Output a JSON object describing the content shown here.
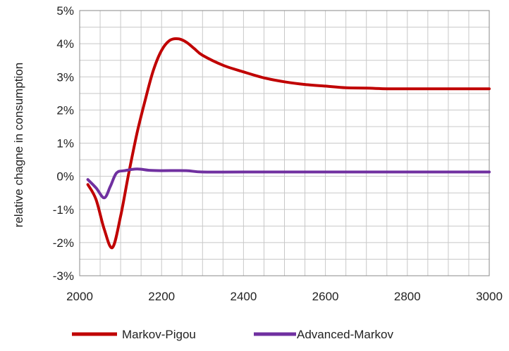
{
  "chart_data": {
    "type": "line",
    "xlabel": "",
    "ylabel": "relative chagne in consumption",
    "xlim": [
      2000,
      3000
    ],
    "ylim": [
      -3,
      5
    ],
    "x_ticks": [
      "2000",
      "2200",
      "2400",
      "2600",
      "2800",
      "3000"
    ],
    "y_ticks": [
      "-3%",
      "-2%",
      "-1%",
      "0%",
      "1%",
      "2%",
      "3%",
      "4%",
      "5%"
    ],
    "grid": true,
    "legend_position": "bottom",
    "series": [
      {
        "name": "Markov-Pigou",
        "color": "#c00000",
        "points": [
          [
            2020,
            -0.25
          ],
          [
            2040,
            -0.7
          ],
          [
            2060,
            -1.6
          ],
          [
            2080,
            -2.15
          ],
          [
            2100,
            -1.2
          ],
          [
            2120,
            0.1
          ],
          [
            2140,
            1.3
          ],
          [
            2160,
            2.3
          ],
          [
            2180,
            3.2
          ],
          [
            2200,
            3.8
          ],
          [
            2220,
            4.1
          ],
          [
            2240,
            4.15
          ],
          [
            2260,
            4.05
          ],
          [
            2280,
            3.85
          ],
          [
            2300,
            3.65
          ],
          [
            2350,
            3.35
          ],
          [
            2400,
            3.15
          ],
          [
            2450,
            2.97
          ],
          [
            2500,
            2.85
          ],
          [
            2550,
            2.77
          ],
          [
            2600,
            2.72
          ],
          [
            2650,
            2.67
          ],
          [
            2700,
            2.66
          ],
          [
            2750,
            2.64
          ],
          [
            2800,
            2.64
          ],
          [
            2900,
            2.64
          ],
          [
            3000,
            2.64
          ]
        ]
      },
      {
        "name": "Advanced-Markov",
        "color": "#7030a0",
        "points": [
          [
            2020,
            -0.1
          ],
          [
            2040,
            -0.35
          ],
          [
            2060,
            -0.65
          ],
          [
            2075,
            -0.3
          ],
          [
            2090,
            0.1
          ],
          [
            2110,
            0.17
          ],
          [
            2140,
            0.22
          ],
          [
            2170,
            0.18
          ],
          [
            2200,
            0.17
          ],
          [
            2260,
            0.17
          ],
          [
            2300,
            0.13
          ],
          [
            2400,
            0.13
          ],
          [
            2600,
            0.13
          ],
          [
            2800,
            0.13
          ],
          [
            3000,
            0.13
          ]
        ]
      }
    ]
  }
}
